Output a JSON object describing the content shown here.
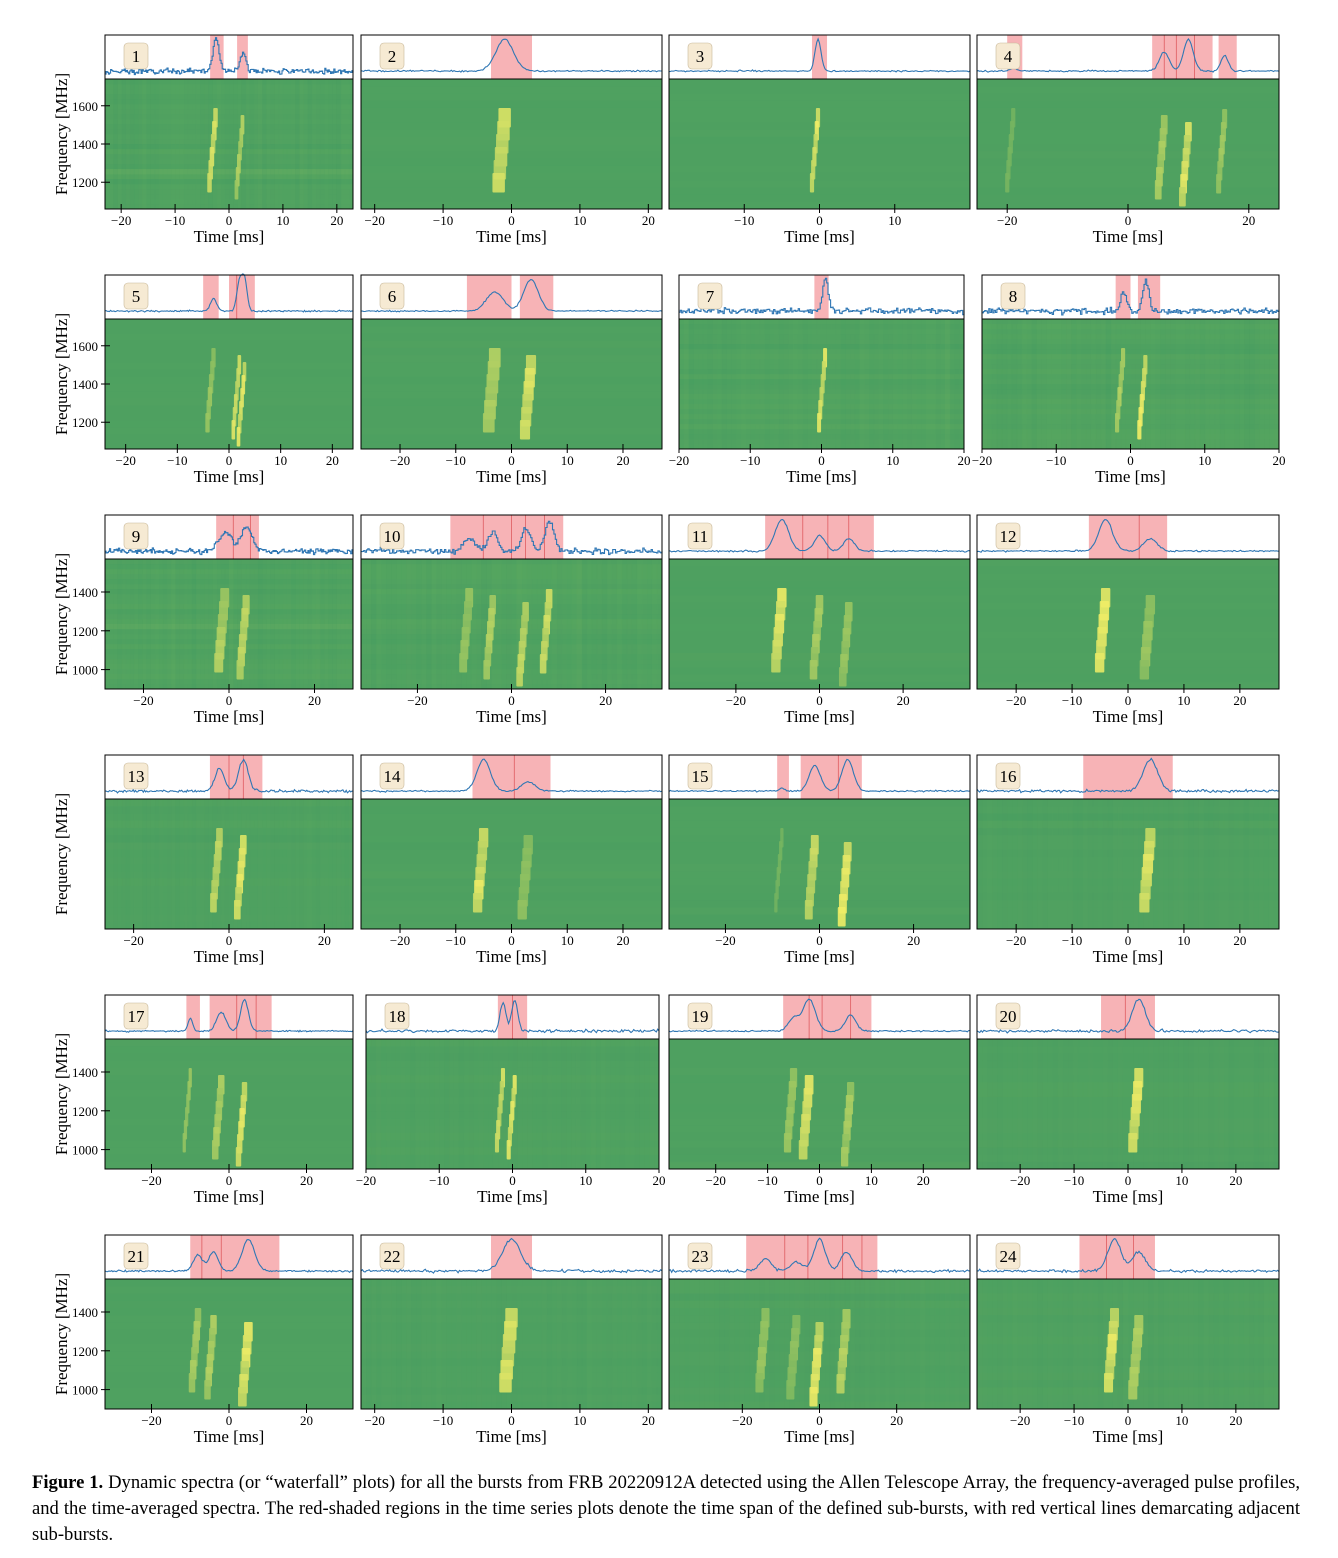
{
  "figure": {
    "ylabel": "Frequency [MHz]",
    "xlabel": "Time [ms]",
    "caption_label": "Figure 1.",
    "caption_text": "Dynamic spectra (or “waterfall” plots) for all the bursts from FRB 20220912A detected using the Allen Telescope Array, the frequency-averaged pulse profiles, and the time-averaged spectra. The red-shaded regions in the time series plots denote the time span of the defined sub-bursts, with red vertical lines demarcating adjacent sub-bursts."
  },
  "colors": {
    "profile": "#2f77b4",
    "subburst_shade": "#f7b3b6",
    "subburst_line": "#d9464b",
    "waterfall_dark": "#2c8c62",
    "waterfall_mid": "#5aa85f",
    "waterfall_bright": "#fcf267",
    "label_box": "#f6ead3"
  },
  "chart_data": [
    {
      "type": "heatmap",
      "panel": "1",
      "xlim": [
        -23,
        23
      ],
      "xticks": [
        -20,
        -10,
        0,
        10,
        20
      ],
      "ylim": [
        1060,
        1740
      ],
      "yticks": [
        1200,
        1400,
        1600
      ],
      "subbursts": [
        [
          -3.5,
          -1
        ],
        [
          1.5,
          3.5
        ]
      ],
      "peaks": [
        [
          -2.5,
          1.0,
          0.6
        ],
        [
          2.5,
          0.6,
          0.5
        ]
      ],
      "noise": "high"
    },
    {
      "type": "heatmap",
      "panel": "2",
      "xlim": [
        -22,
        22
      ],
      "xticks": [
        -20,
        -10,
        0,
        10,
        20
      ],
      "subbursts": [
        [
          -3,
          3
        ]
      ],
      "peaks": [
        [
          -1,
          1.0,
          1.3
        ]
      ],
      "noise": "low"
    },
    {
      "type": "heatmap",
      "panel": "3",
      "xlim": [
        -20,
        20
      ],
      "xticks": [
        -10,
        0,
        10
      ],
      "subbursts": [
        [
          -1,
          1
        ]
      ],
      "peaks": [
        [
          -0.2,
          1.0,
          0.4
        ]
      ],
      "noise": "low"
    },
    {
      "type": "heatmap",
      "panel": "4",
      "xlim": [
        -25,
        25
      ],
      "xticks": [
        -20,
        0,
        20
      ],
      "subbursts": [
        [
          -20,
          -17.5
        ],
        [
          4,
          14
        ],
        [
          15,
          18
        ]
      ],
      "subburst_lines": [
        6,
        8,
        11
      ],
      "peaks": [
        [
          -19,
          0.1,
          0.5
        ],
        [
          6,
          0.6,
          0.8
        ],
        [
          10,
          1.0,
          0.8
        ],
        [
          16,
          0.5,
          0.6
        ]
      ],
      "noise": "low"
    },
    {
      "type": "heatmap",
      "panel": "5",
      "xlim": [
        -24,
        24
      ],
      "xticks": [
        -20,
        -10,
        0,
        10,
        20
      ],
      "ylim": [
        1060,
        1740
      ],
      "yticks": [
        1200,
        1400,
        1600
      ],
      "subbursts": [
        [
          -5,
          -2
        ],
        [
          0,
          5
        ]
      ],
      "subburst_lines": [
        1.5
      ],
      "peaks": [
        [
          -3,
          0.4,
          0.6
        ],
        [
          2,
          0.9,
          0.5
        ],
        [
          3,
          1.0,
          0.5
        ]
      ],
      "noise": "low"
    },
    {
      "type": "heatmap",
      "panel": "6",
      "xlim": [
        -27,
        27
      ],
      "xticks": [
        -20,
        -10,
        0,
        10,
        20
      ],
      "subbursts": [
        [
          -8,
          0
        ],
        [
          1.5,
          7.5
        ]
      ],
      "peaks": [
        [
          -3,
          0.6,
          1.5
        ],
        [
          3.5,
          1.0,
          1.3
        ]
      ],
      "noise": "low"
    },
    {
      "type": "heatmap",
      "panel": "7",
      "xlim": [
        -20,
        20
      ],
      "xticks": [
        -20,
        -10,
        0,
        10,
        20
      ],
      "subbursts": [
        [
          -1,
          1
        ]
      ],
      "peaks": [
        [
          0.5,
          1.0,
          0.4
        ]
      ],
      "noise": "high"
    },
    {
      "type": "heatmap",
      "panel": "8",
      "xlim": [
        -20,
        20
      ],
      "xticks": [
        -20,
        -10,
        0,
        10,
        20
      ],
      "subbursts": [
        [
          -2,
          0
        ],
        [
          1,
          4
        ]
      ],
      "peaks": [
        [
          -1,
          0.6,
          0.4
        ],
        [
          2,
          1.0,
          0.4
        ]
      ],
      "noise": "high"
    },
    {
      "type": "heatmap",
      "panel": "9",
      "xlim": [
        -29,
        29
      ],
      "xticks": [
        -20,
        0,
        20
      ],
      "ylim": [
        900,
        1570
      ],
      "yticks": [
        1000,
        1200,
        1400
      ],
      "subbursts": [
        [
          -3,
          7
        ]
      ],
      "subburst_lines": [
        1,
        5
      ],
      "peaks": [
        [
          -1,
          0.6,
          1.5
        ],
        [
          4,
          0.8,
          1.2
        ]
      ],
      "noise": "high"
    },
    {
      "type": "heatmap",
      "panel": "10",
      "xlim": [
        -32,
        32
      ],
      "xticks": [
        -20,
        0,
        20
      ],
      "subbursts": [
        [
          -13,
          11
        ]
      ],
      "subburst_lines": [
        -6,
        0,
        3,
        7
      ],
      "peaks": [
        [
          -9,
          0.4,
          1.2
        ],
        [
          -4,
          0.6,
          1.0
        ],
        [
          3,
          0.7,
          1.0
        ],
        [
          8,
          0.9,
          1.0
        ]
      ],
      "noise": "high"
    },
    {
      "type": "heatmap",
      "panel": "11",
      "xlim": [
        -36,
        36
      ],
      "xticks": [
        -20,
        0,
        20
      ],
      "subbursts": [
        [
          -13,
          13
        ]
      ],
      "subburst_lines": [
        -4,
        2,
        7
      ],
      "peaks": [
        [
          -9,
          1.0,
          1.6
        ],
        [
          0,
          0.5,
          1.3
        ],
        [
          7,
          0.4,
          1.3
        ]
      ],
      "noise": "low"
    },
    {
      "type": "heatmap",
      "panel": "12",
      "xlim": [
        -27,
        27
      ],
      "xticks": [
        -20,
        -10,
        0,
        10,
        20
      ],
      "subbursts": [
        [
          -7,
          7
        ]
      ],
      "subburst_lines": [
        2
      ],
      "peaks": [
        [
          -4,
          1.0,
          1.2
        ],
        [
          4,
          0.4,
          1.2
        ]
      ],
      "noise": "low"
    },
    {
      "type": "heatmap",
      "panel": "13",
      "xlim": [
        -26,
        26
      ],
      "xticks": [
        -20,
        0,
        20
      ],
      "subbursts": [
        [
          -4,
          7
        ]
      ],
      "subburst_lines": [
        0,
        3
      ],
      "peaks": [
        [
          -2,
          0.7,
          1.0
        ],
        [
          3,
          1.0,
          1.0
        ]
      ],
      "noise": "medium"
    },
    {
      "type": "heatmap",
      "panel": "14",
      "xlim": [
        -27,
        27
      ],
      "xticks": [
        -20,
        -10,
        0,
        10,
        20
      ],
      "subbursts": [
        [
          -7,
          7
        ]
      ],
      "subburst_lines": [
        0.5
      ],
      "peaks": [
        [
          -5,
          1.0,
          1.2
        ],
        [
          3,
          0.3,
          1.2
        ]
      ],
      "noise": "low"
    },
    {
      "type": "heatmap",
      "panel": "15",
      "xlim": [
        -32,
        32
      ],
      "xticks": [
        -20,
        0,
        20
      ],
      "subbursts": [
        [
          -9,
          -6.5
        ],
        [
          -4,
          9
        ]
      ],
      "subburst_lines": [
        4
      ],
      "peaks": [
        [
          -8,
          0.1,
          0.5
        ],
        [
          -1,
          0.8,
          1.2
        ],
        [
          6,
          1.0,
          1.2
        ]
      ],
      "noise": "low"
    },
    {
      "type": "heatmap",
      "panel": "16",
      "xlim": [
        -27,
        27
      ],
      "xticks": [
        -20,
        -10,
        0,
        10,
        20
      ],
      "subbursts": [
        [
          -8,
          8
        ]
      ],
      "peaks": [
        [
          4,
          1.0,
          1.3
        ]
      ],
      "noise": "medium"
    },
    {
      "type": "heatmap",
      "panel": "17",
      "xlim": [
        -32,
        32
      ],
      "xticks": [
        -20,
        0,
        20
      ],
      "ylim": [
        900,
        1570
      ],
      "yticks": [
        1000,
        1200,
        1400
      ],
      "subbursts": [
        [
          -11,
          -7.5
        ],
        [
          -5,
          11
        ]
      ],
      "subburst_lines": [
        2,
        7
      ],
      "peaks": [
        [
          -10,
          0.4,
          0.6
        ],
        [
          -2,
          0.6,
          1.2
        ],
        [
          4,
          1.0,
          1.0
        ]
      ],
      "noise": "low"
    },
    {
      "type": "heatmap",
      "panel": "18",
      "xlim": [
        -20,
        20
      ],
      "xticks": [
        -20,
        -10,
        0,
        10,
        20
      ],
      "subbursts": [
        [
          -2,
          2
        ]
      ],
      "subburst_lines": [
        0
      ],
      "peaks": [
        [
          -1.3,
          0.9,
          0.4
        ],
        [
          0.3,
          1.0,
          0.4
        ]
      ],
      "noise": "medium"
    },
    {
      "type": "heatmap",
      "panel": "19",
      "xlim": [
        -29,
        29
      ],
      "xticks": [
        -20,
        -10,
        0,
        10,
        20
      ],
      "subbursts": [
        [
          -7,
          10
        ]
      ],
      "subburst_lines": [
        -2,
        0.5,
        6
      ],
      "peaks": [
        [
          -5,
          0.4,
          1.0
        ],
        [
          -2,
          1.0,
          1.2
        ],
        [
          6,
          0.5,
          1.0
        ]
      ],
      "noise": "low"
    },
    {
      "type": "heatmap",
      "panel": "20",
      "xlim": [
        -28,
        28
      ],
      "xticks": [
        -20,
        -10,
        0,
        10,
        20
      ],
      "subbursts": [
        [
          -5,
          5
        ]
      ],
      "subburst_lines": [
        -0.5
      ],
      "peaks": [
        [
          2,
          1.0,
          1.2
        ]
      ],
      "noise": "medium"
    },
    {
      "type": "heatmap",
      "panel": "21",
      "xlim": [
        -32,
        32
      ],
      "xticks": [
        -20,
        0,
        20
      ],
      "ylim": [
        900,
        1570
      ],
      "yticks": [
        1000,
        1200,
        1400
      ],
      "subbursts": [
        [
          -10,
          13
        ]
      ],
      "subburst_lines": [
        -7,
        -2
      ],
      "peaks": [
        [
          -8,
          0.5,
          1.2
        ],
        [
          -4,
          0.6,
          1.2
        ],
        [
          5,
          1.0,
          1.6
        ]
      ],
      "noise": "low"
    },
    {
      "type": "heatmap",
      "panel": "22",
      "xlim": [
        -22,
        22
      ],
      "xticks": [
        -20,
        -10,
        0,
        10,
        20
      ],
      "subbursts": [
        [
          -3,
          3
        ]
      ],
      "peaks": [
        [
          0,
          1.0,
          1.3
        ]
      ],
      "noise": "medium"
    },
    {
      "type": "heatmap",
      "panel": "23",
      "xlim": [
        -39,
        39
      ],
      "xticks": [
        -20,
        0,
        20
      ],
      "subbursts": [
        [
          -19,
          15
        ]
      ],
      "subburst_lines": [
        -9,
        -3,
        6,
        11
      ],
      "peaks": [
        [
          -14,
          0.4,
          1.5
        ],
        [
          -6,
          0.3,
          1.5
        ],
        [
          0,
          1.0,
          1.5
        ],
        [
          7,
          0.6,
          1.5
        ]
      ],
      "noise": "medium"
    },
    {
      "type": "heatmap",
      "panel": "24",
      "xlim": [
        -28,
        28
      ],
      "xticks": [
        -20,
        -10,
        0,
        10,
        20
      ],
      "subbursts": [
        [
          -9,
          5
        ]
      ],
      "subburst_lines": [
        -4,
        1
      ],
      "peaks": [
        [
          -2.5,
          1.0,
          1.2
        ],
        [
          2,
          0.6,
          1.2
        ]
      ],
      "noise": "medium"
    }
  ]
}
